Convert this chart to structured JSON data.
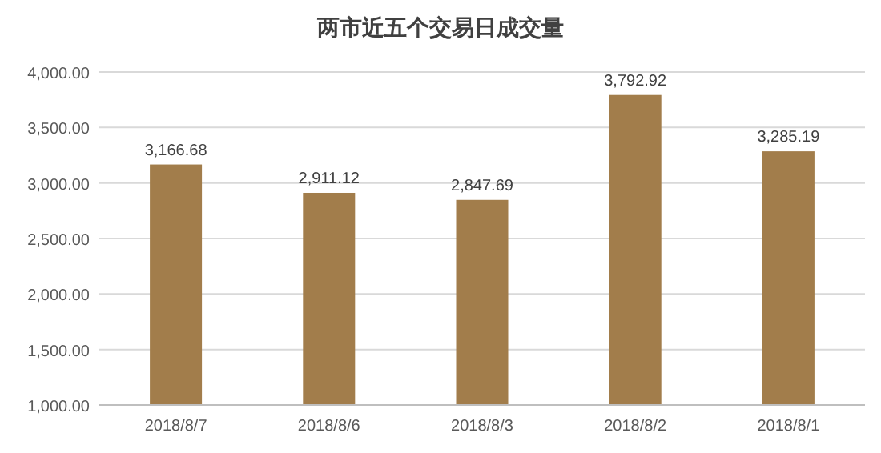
{
  "chart_data": {
    "type": "bar",
    "title": "两市近五个交易日成交量",
    "categories": [
      "2018/8/7",
      "2018/8/6",
      "2018/8/3",
      "2018/8/2",
      "2018/8/1"
    ],
    "values": [
      3166.68,
      2911.12,
      2847.69,
      3792.92,
      3285.19
    ],
    "value_labels": [
      "3,166.68",
      "2,911.12",
      "2,847.69",
      "3,792.92",
      "3,285.19"
    ],
    "color": "#a27d4b",
    "ylim": [
      1000,
      4000
    ],
    "yticks": [
      {
        "value": 1000,
        "label": "1,000.00"
      },
      {
        "value": 1500,
        "label": "1,500.00"
      },
      {
        "value": 2000,
        "label": "2,000.00"
      },
      {
        "value": 2500,
        "label": "2,500.00"
      },
      {
        "value": 3000,
        "label": "3,000.00"
      },
      {
        "value": 3500,
        "label": "3,500.00"
      },
      {
        "value": 4000,
        "label": "4,000.00"
      }
    ],
    "grid": "y"
  }
}
